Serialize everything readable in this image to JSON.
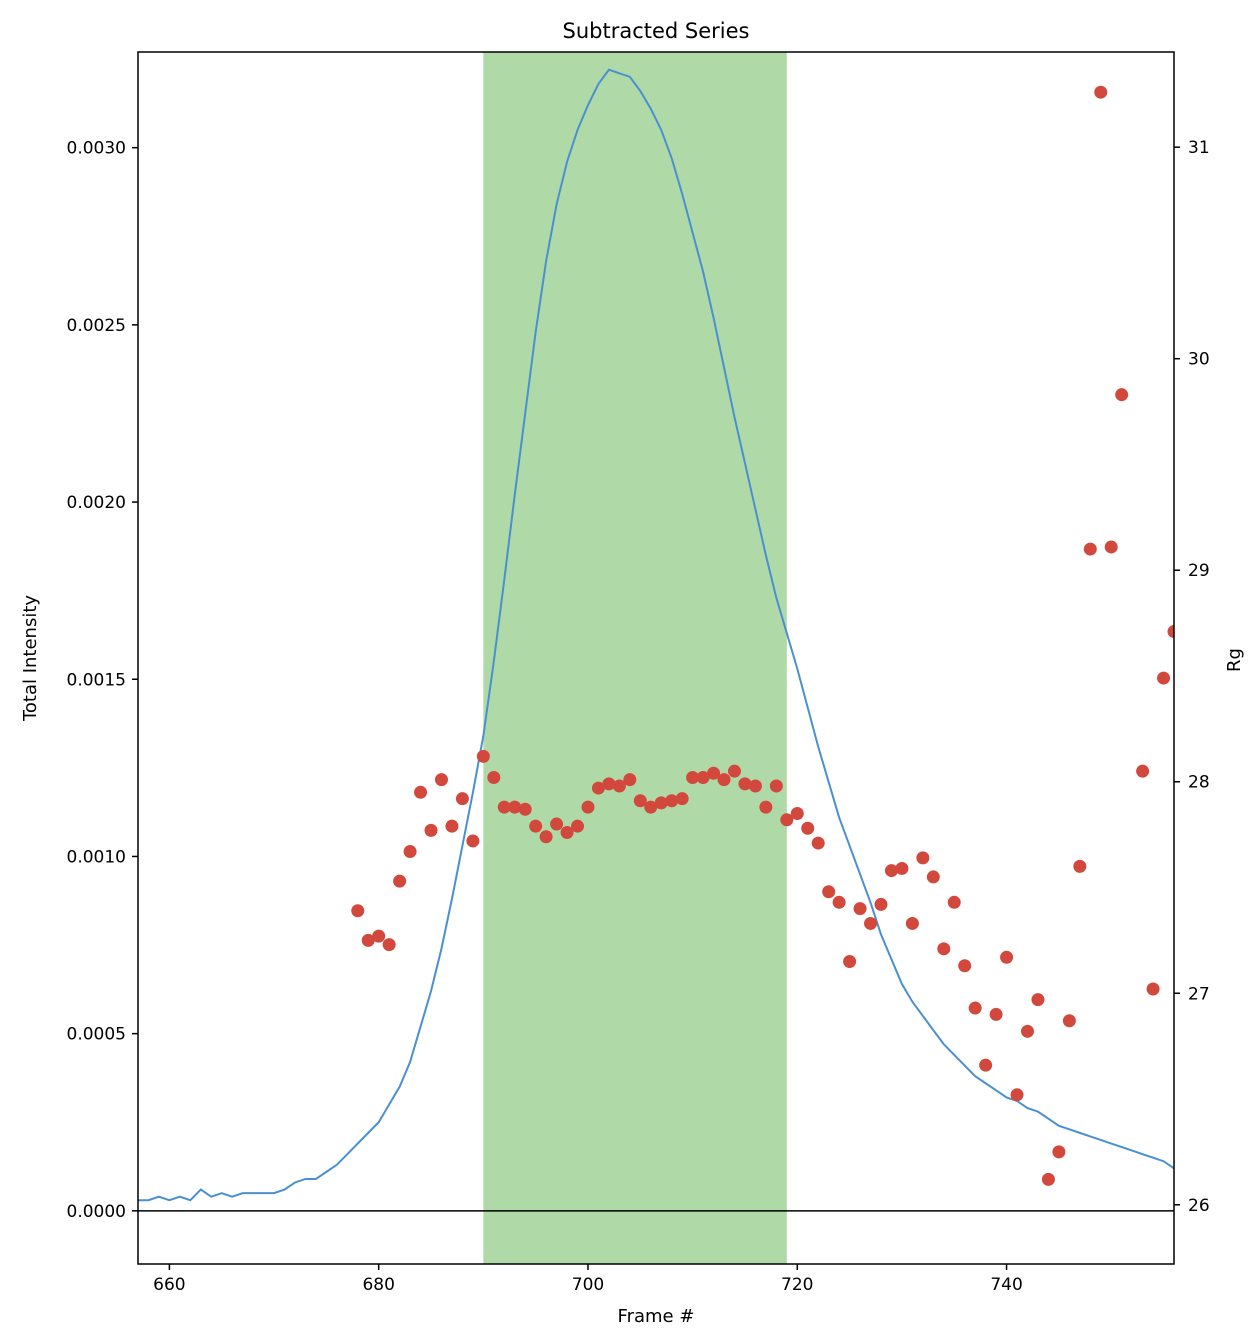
{
  "chart_data": {
    "type": "line",
    "title": "Subtracted Series",
    "xlabel": "Frame #",
    "ylabel": "Total Intensity",
    "y2label": "Rg",
    "xlim": [
      657,
      756
    ],
    "ylim": [
      -0.00015,
      0.00327
    ],
    "y2lim": [
      25.72,
      31.45
    ],
    "x_ticks": [
      660,
      680,
      700,
      720,
      740
    ],
    "x_tick_labels": [
      "660",
      "680",
      "700",
      "720",
      "740"
    ],
    "y_ticks": [
      0.0,
      0.0005,
      0.001,
      0.0015,
      0.002,
      0.0025,
      0.003
    ],
    "y_tick_labels": [
      "0.0000",
      "0.0005",
      "0.0010",
      "0.0015",
      "0.0020",
      "0.0025",
      "0.0030"
    ],
    "y2_ticks": [
      26,
      27,
      28,
      29,
      30,
      31
    ],
    "y2_tick_labels": [
      "26",
      "27",
      "28",
      "29",
      "30",
      "31"
    ],
    "grid": false,
    "legend": "none",
    "highlight_range": [
      690,
      719
    ],
    "zero_line": 0,
    "colors": {
      "intensity_line": "#4a90d0",
      "rg_points": "#d2483c",
      "highlight": "#7cbf6e",
      "zero_line": "#000000"
    },
    "series": [
      {
        "axis": "left",
        "style": "line",
        "x": [
          657,
          658,
          659,
          660,
          661,
          662,
          663,
          664,
          665,
          666,
          667,
          668,
          669,
          670,
          671,
          672,
          673,
          674,
          675,
          676,
          677,
          678,
          679,
          680,
          681,
          682,
          683,
          684,
          685,
          686,
          687,
          688,
          689,
          690,
          691,
          692,
          693,
          694,
          695,
          696,
          697,
          698,
          699,
          700,
          701,
          702,
          703,
          704,
          705,
          706,
          707,
          708,
          709,
          710,
          711,
          712,
          713,
          714,
          715,
          716,
          717,
          718,
          719,
          720,
          721,
          722,
          723,
          724,
          725,
          726,
          727,
          728,
          729,
          730,
          731,
          732,
          733,
          734,
          735,
          736,
          737,
          738,
          739,
          740,
          741,
          742,
          743,
          744,
          745,
          746,
          747,
          748,
          749,
          750,
          751,
          752,
          753,
          754,
          755,
          756
        ],
        "values": [
          3e-05,
          3e-05,
          4e-05,
          3e-05,
          4e-05,
          3e-05,
          6e-05,
          4e-05,
          5e-05,
          4e-05,
          5e-05,
          5e-05,
          5e-05,
          5e-05,
          6e-05,
          8e-05,
          9e-05,
          9e-05,
          0.00011,
          0.00013,
          0.00016,
          0.00019,
          0.00022,
          0.00025,
          0.0003,
          0.00035,
          0.00042,
          0.00052,
          0.00062,
          0.00074,
          0.00088,
          0.00103,
          0.00118,
          0.00134,
          0.00155,
          0.00178,
          0.00202,
          0.00225,
          0.00248,
          0.00268,
          0.00284,
          0.00296,
          0.00305,
          0.00312,
          0.00318,
          0.00322,
          0.00321,
          0.0032,
          0.00316,
          0.00311,
          0.00305,
          0.00297,
          0.00287,
          0.00276,
          0.00265,
          0.00252,
          0.00238,
          0.00224,
          0.00211,
          0.00198,
          0.00185,
          0.00173,
          0.00163,
          0.00153,
          0.00142,
          0.00131,
          0.00121,
          0.00111,
          0.00103,
          0.00095,
          0.00087,
          0.00078,
          0.00071,
          0.00064,
          0.00059,
          0.00055,
          0.00051,
          0.00047,
          0.00044,
          0.00041,
          0.00038,
          0.00036,
          0.00034,
          0.00032,
          0.00031,
          0.00029,
          0.00028,
          0.00026,
          0.00024,
          0.00023,
          0.00022,
          0.00021,
          0.0002,
          0.00019,
          0.00018,
          0.00017,
          0.00016,
          0.00015,
          0.00014,
          0.00012
        ]
      },
      {
        "axis": "right",
        "style": "scatter",
        "x": [
          678,
          679,
          680,
          681,
          682,
          683,
          684,
          685,
          686,
          687,
          688,
          689,
          690,
          691,
          692,
          693,
          694,
          695,
          696,
          697,
          698,
          699,
          700,
          701,
          702,
          703,
          704,
          705,
          706,
          707,
          708,
          709,
          710,
          711,
          712,
          713,
          714,
          715,
          716,
          717,
          718,
          719,
          720,
          721,
          722,
          723,
          724,
          725,
          726,
          727,
          728,
          729,
          730,
          731,
          732,
          733,
          734,
          735,
          736,
          737,
          738,
          739,
          740,
          741,
          742,
          743,
          744,
          745,
          746,
          747,
          748,
          749,
          750,
          751,
          753,
          754,
          755,
          756
        ],
        "values": [
          27.39,
          27.25,
          27.27,
          27.23,
          27.53,
          27.67,
          27.95,
          27.77,
          28.01,
          27.79,
          27.92,
          27.72,
          28.12,
          28.02,
          27.88,
          27.88,
          27.87,
          27.79,
          27.74,
          27.8,
          27.76,
          27.79,
          27.88,
          27.97,
          27.99,
          27.98,
          28.01,
          27.91,
          27.88,
          27.9,
          27.91,
          27.92,
          28.02,
          28.02,
          28.04,
          28.01,
          28.05,
          27.99,
          27.98,
          27.88,
          27.98,
          27.82,
          27.85,
          27.78,
          27.71,
          27.48,
          27.43,
          27.15,
          27.4,
          27.33,
          27.42,
          27.58,
          27.59,
          27.33,
          27.64,
          27.55,
          27.21,
          27.43,
          27.13,
          26.93,
          26.66,
          26.9,
          27.17,
          26.52,
          26.82,
          26.97,
          26.12,
          26.25,
          26.87,
          27.6,
          29.1,
          31.26,
          29.11,
          29.83,
          28.05,
          27.02,
          28.49,
          28.71
        ]
      }
    ]
  }
}
